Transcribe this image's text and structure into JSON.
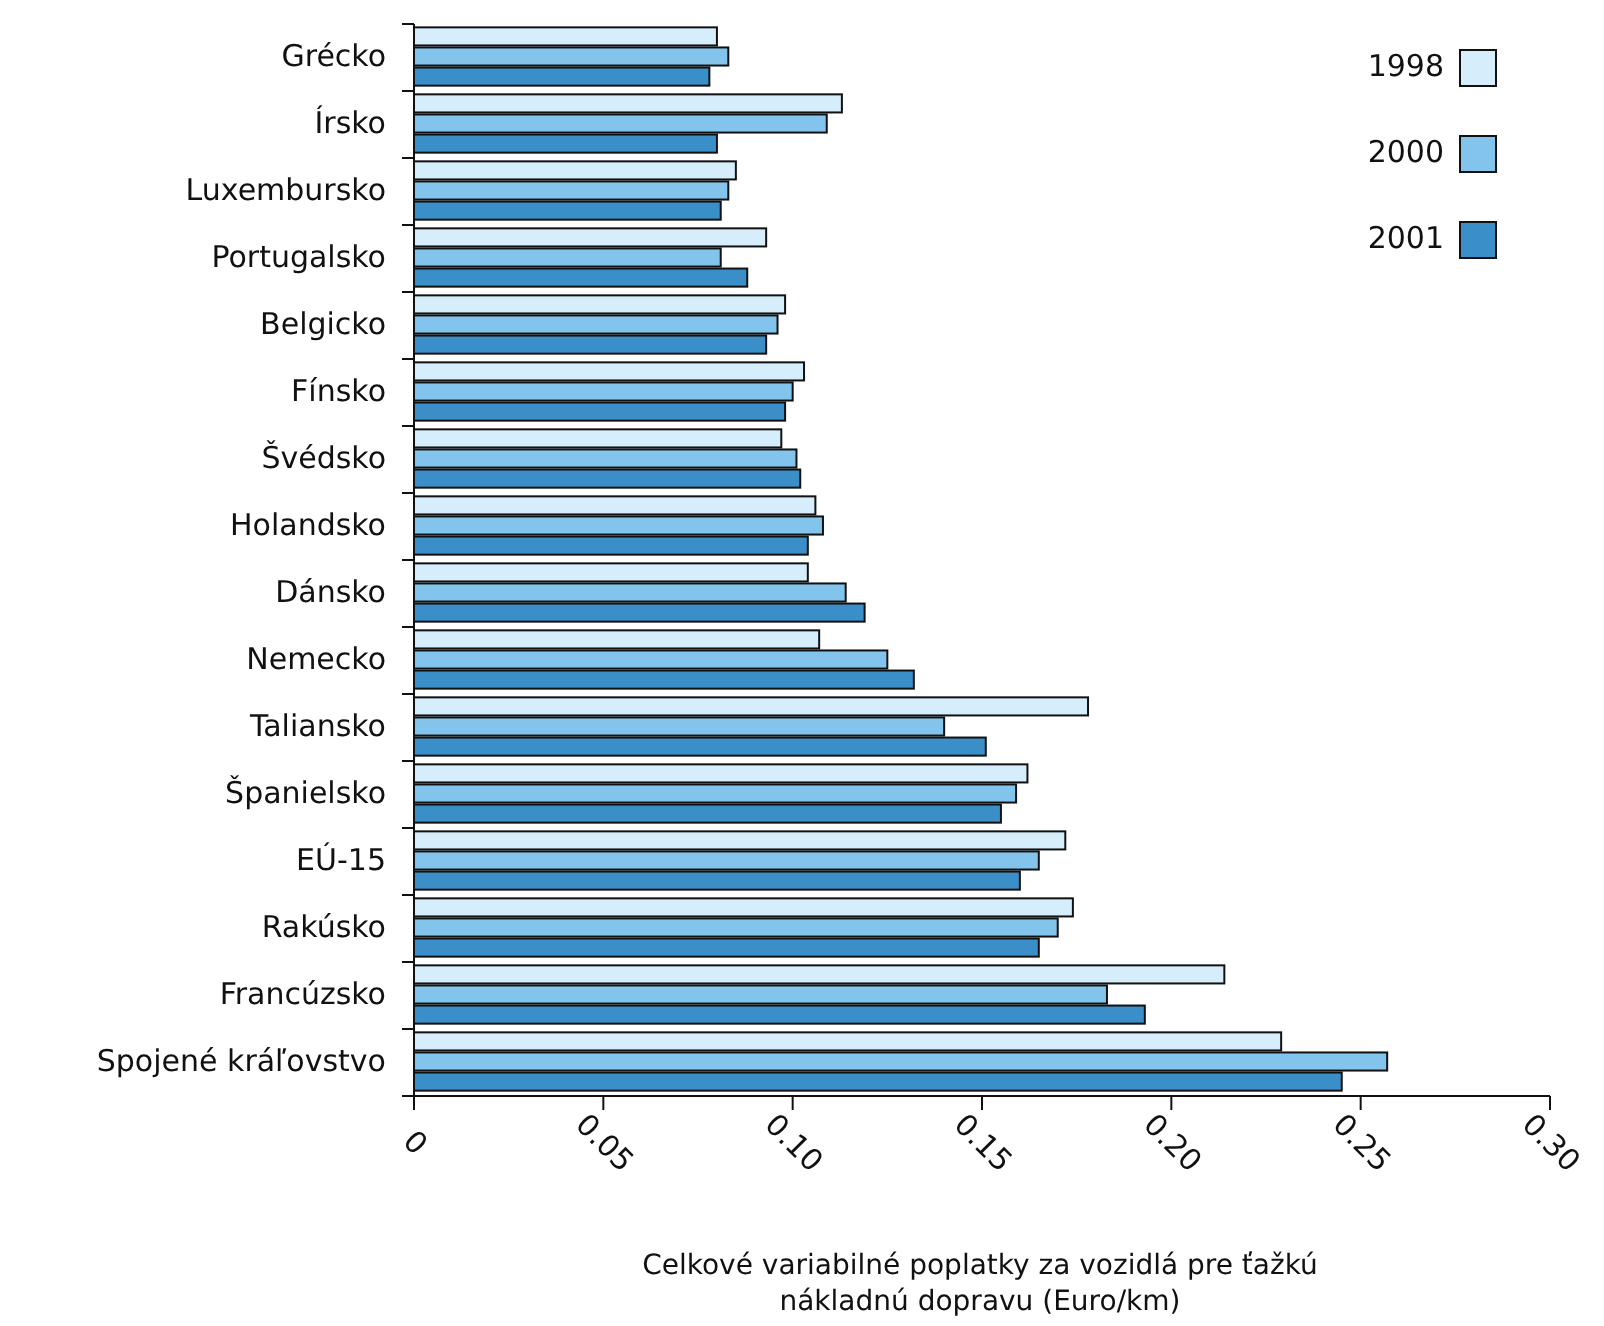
{
  "chart_data": {
    "type": "bar",
    "orientation": "horizontal",
    "xlabel": "Celkové variabilné poplatky za vozidlá pre ťažkú nákladnú dopravu (Euro/km)",
    "categories": [
      "Grécko",
      "Írsko",
      "Luxembursko",
      "Portugalsko",
      "Belgicko",
      "Fínsko",
      "Švédsko",
      "Holandsko",
      "Dánsko",
      "Nemecko",
      "Taliansko",
      "Španielsko",
      "EÚ-15",
      "Rakúsko",
      "Francúzsko",
      "Spojené kráľovstvo"
    ],
    "series": [
      {
        "name": "1998",
        "color": "#d6eefb",
        "values": [
          0.08,
          0.113,
          0.085,
          0.093,
          0.098,
          0.103,
          0.097,
          0.106,
          0.104,
          0.107,
          0.178,
          0.162,
          0.172,
          0.174,
          0.214,
          0.229
        ]
      },
      {
        "name": "2000",
        "color": "#82c4ec",
        "values": [
          0.083,
          0.109,
          0.083,
          0.081,
          0.096,
          0.1,
          0.101,
          0.108,
          0.114,
          0.125,
          0.14,
          0.159,
          0.165,
          0.17,
          0.183,
          0.257
        ]
      },
      {
        "name": "2001",
        "color": "#3a8fc8",
        "values": [
          0.078,
          0.08,
          0.081,
          0.088,
          0.093,
          0.098,
          0.102,
          0.104,
          0.119,
          0.132,
          0.151,
          0.155,
          0.16,
          0.165,
          0.193,
          0.245
        ]
      }
    ],
    "xlim": [
      0,
      0.3
    ],
    "xticks": [
      0,
      {
        "value": 0.05,
        "label": "0.05"
      },
      {
        "value": 0.1,
        "label": "0.10"
      },
      {
        "value": 0.15,
        "label": "0.15"
      },
      {
        "value": 0.2,
        "label": "0.20"
      },
      {
        "value": 0.25,
        "label": "0.25"
      },
      {
        "value": 0.3,
        "label": "0.30"
      }
    ],
    "legend": "top right",
    "grid": false
  }
}
